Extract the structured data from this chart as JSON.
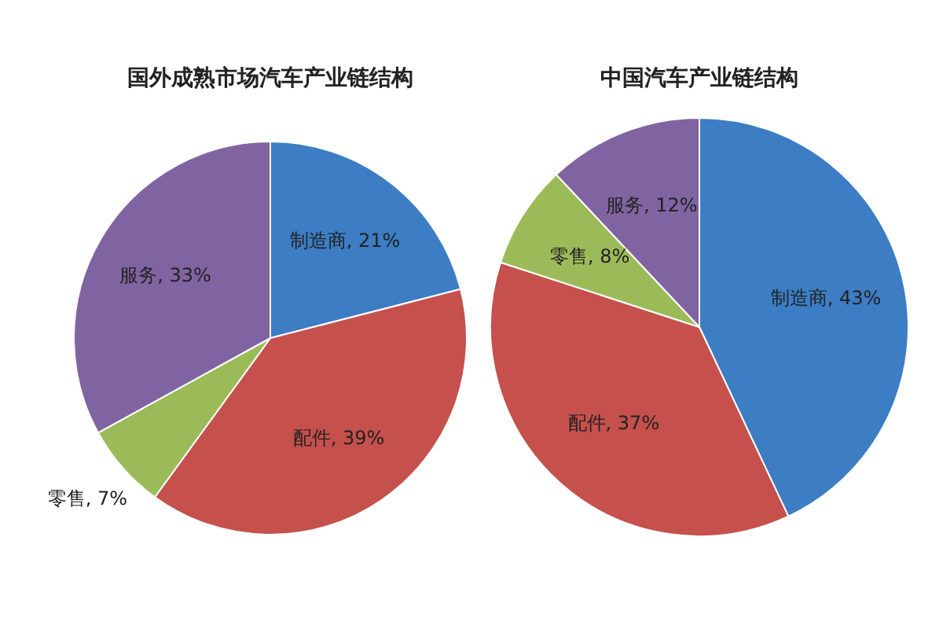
{
  "chart_data": [
    {
      "type": "pie",
      "title": "国外成熟市场汽车产业链结构",
      "categories": [
        "制造商, 21%",
        "配件, 39%",
        "零售, 7%",
        "服务, 33%"
      ],
      "values": [
        21,
        39,
        7,
        33
      ],
      "colors": [
        "#3c7dc4",
        "#c5504c",
        "#9bbb59",
        "#8064a2"
      ]
    },
    {
      "type": "pie",
      "title": "中国汽车产业链结构",
      "categories": [
        "制造商, 43%",
        "配件, 37%",
        "零售, 8%",
        "服务, 12%"
      ],
      "values": [
        43,
        37,
        8,
        12
      ],
      "colors": [
        "#3c7dc4",
        "#c5504c",
        "#9bbb59",
        "#8064a2"
      ]
    }
  ]
}
